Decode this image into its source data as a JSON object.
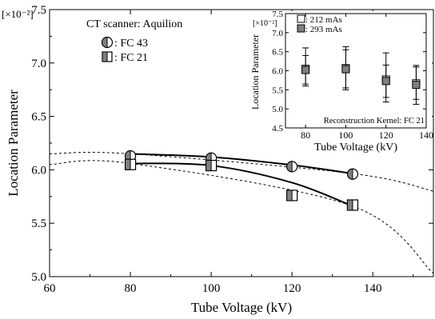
{
  "chart_data": [
    {
      "type": "line",
      "xlabel": "Tube Voltage (kV)",
      "ylabel": "Location Parameter",
      "y_multiplier": "[×10⁻²]",
      "xlim": [
        60,
        155
      ],
      "ylim": [
        5.0,
        7.5
      ],
      "x_ticks": [
        "60",
        "80",
        "100",
        "120",
        "140"
      ],
      "y_ticks": [
        "5.0",
        "5.5",
        "6.0",
        "6.5",
        "7.0",
        "7.5"
      ],
      "annotation": "CT scanner: Aquilion",
      "legend": [
        {
          "label": ": FC 43",
          "marker": "circle-half-filled-left"
        },
        {
          "label": ": FC 21",
          "marker": "square-half-filled-left"
        }
      ],
      "series": [
        {
          "name": "FC 43",
          "marker": "circle",
          "points": [
            [
              80,
              6.13
            ],
            [
              100,
              6.11
            ],
            [
              120,
              6.03
            ],
            [
              135,
              5.96
            ]
          ],
          "fit_solid": [
            [
              80,
              6.15
            ],
            [
              100,
              6.12
            ],
            [
              120,
              6.045
            ],
            [
              135,
              5.965
            ]
          ],
          "fit_dashed": [
            [
              60,
              6.15
            ],
            [
              80,
              6.15
            ],
            [
              135,
              5.965
            ],
            [
              155,
              5.8
            ]
          ]
        },
        {
          "name": "FC 21",
          "marker": "square",
          "points": [
            [
              80,
              6.05
            ],
            [
              100,
              6.04
            ],
            [
              120,
              5.76
            ],
            [
              135,
              5.67
            ]
          ],
          "fit_solid": [
            [
              80,
              6.06
            ],
            [
              100,
              6.04
            ],
            [
              120,
              5.88
            ],
            [
              135,
              5.66
            ]
          ],
          "fit_dashed": [
            [
              60,
              6.05
            ],
            [
              80,
              6.06
            ],
            [
              135,
              5.66
            ],
            [
              155,
              5.03
            ]
          ]
        }
      ],
      "colors": {
        "filled": "#808080",
        "line": "#000000"
      }
    },
    {
      "type": "scatter",
      "xlabel": "Tube Voltage (kV)",
      "ylabel": "Location Parameter",
      "y_multiplier": "[×10⁻²]",
      "xlim": [
        70,
        140
      ],
      "ylim": [
        4.5,
        7.5
      ],
      "x_ticks": [
        "80",
        "100",
        "120",
        "140"
      ],
      "y_ticks": [
        "4.5",
        "5.0",
        "5.5",
        "6.0",
        "6.5",
        "7.0",
        "7.5"
      ],
      "annotation": "Reconstruction Kernel: FC 21",
      "legend": [
        {
          "label": ": 212 mAs",
          "marker": "open-square"
        },
        {
          "label": ": 293 mAs",
          "marker": "filled-square"
        }
      ],
      "series": [
        {
          "name": "212 mAs",
          "x": [
            80,
            100,
            120,
            135
          ],
          "y": [
            6.05,
            6.07,
            5.77,
            5.67
          ],
          "err_low": [
            5.6,
            5.5,
            5.18,
            5.12
          ],
          "err_high": [
            6.6,
            6.63,
            6.47,
            6.14
          ]
        },
        {
          "name": "293 mAs",
          "x": [
            80,
            100,
            120,
            135
          ],
          "y": [
            6.02,
            6.04,
            5.73,
            5.63
          ],
          "err_low": [
            5.65,
            5.55,
            5.3,
            5.25
          ],
          "err_high": [
            6.4,
            6.55,
            6.15,
            6.1
          ]
        }
      ],
      "colors": {
        "filled": "#808080",
        "open": "#ffffff",
        "line": "#000000"
      }
    }
  ]
}
